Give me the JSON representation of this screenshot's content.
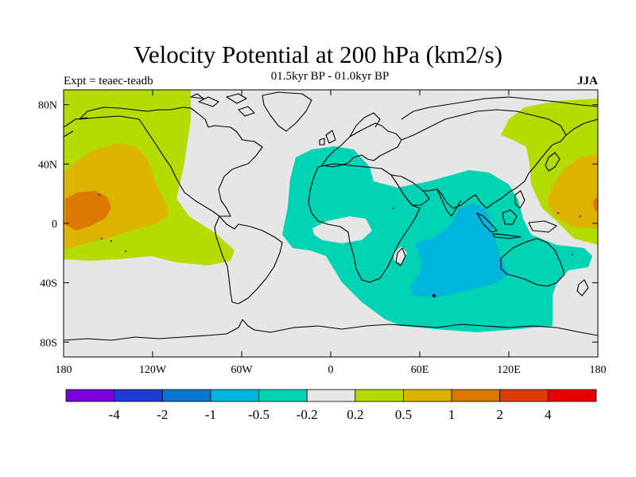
{
  "title": "Velocity Potential at 200 hPa (km2/s)",
  "subtitle": "01.5kyr BP - 01.0kyr BP",
  "experiment": "Expt = teaec-teadb",
  "season": "JJA",
  "map": {
    "projection": "cylindrical-equidistant",
    "lon_range": [
      -180,
      180
    ],
    "lat_range": [
      -90,
      90
    ],
    "background_color": "#e6e6e6",
    "coastline_color": "#000000"
  },
  "axes": {
    "lat_ticks": [
      {
        "value": 80,
        "label": "80N"
      },
      {
        "value": 40,
        "label": "40N"
      },
      {
        "value": 0,
        "label": "0"
      },
      {
        "value": -40,
        "label": "40S"
      },
      {
        "value": -80,
        "label": "80S"
      }
    ],
    "lon_ticks": [
      {
        "value": -180,
        "label": "180"
      },
      {
        "value": -120,
        "label": "120W"
      },
      {
        "value": -60,
        "label": "60W"
      },
      {
        "value": 0,
        "label": "0"
      },
      {
        "value": 60,
        "label": "60E"
      },
      {
        "value": 120,
        "label": "120E"
      },
      {
        "value": 180,
        "label": "180"
      }
    ]
  },
  "colorbar": {
    "colors": [
      "#7a00dc",
      "#1e3cd2",
      "#0a78d2",
      "#00b4dc",
      "#00d2b4",
      "#e6e6e6",
      "#b4dc00",
      "#dcb400",
      "#dc7800",
      "#dc3c00",
      "#e60000"
    ],
    "labels": [
      "-4",
      "-2",
      "-1",
      "-0.5",
      "-0.2",
      "0.2",
      "0.5",
      "1",
      "2",
      "4"
    ]
  },
  "regions": [
    {
      "name": "north-pacific-positive-weak",
      "level": "0.2 to 0.5",
      "color": "#b4dc00"
    },
    {
      "name": "north-pacific-positive-moderate",
      "level": "0.5 to 1",
      "color": "#dcb400"
    },
    {
      "name": "central-pacific-positive-strong",
      "level": "1 to 2",
      "color": "#dc7800"
    },
    {
      "name": "indian-ocean-negative-weak",
      "level": "-0.5 to -0.2",
      "color": "#00d2b4"
    },
    {
      "name": "indian-ocean-negative-moderate",
      "level": "-1 to -0.5",
      "color": "#00b4dc"
    }
  ]
}
